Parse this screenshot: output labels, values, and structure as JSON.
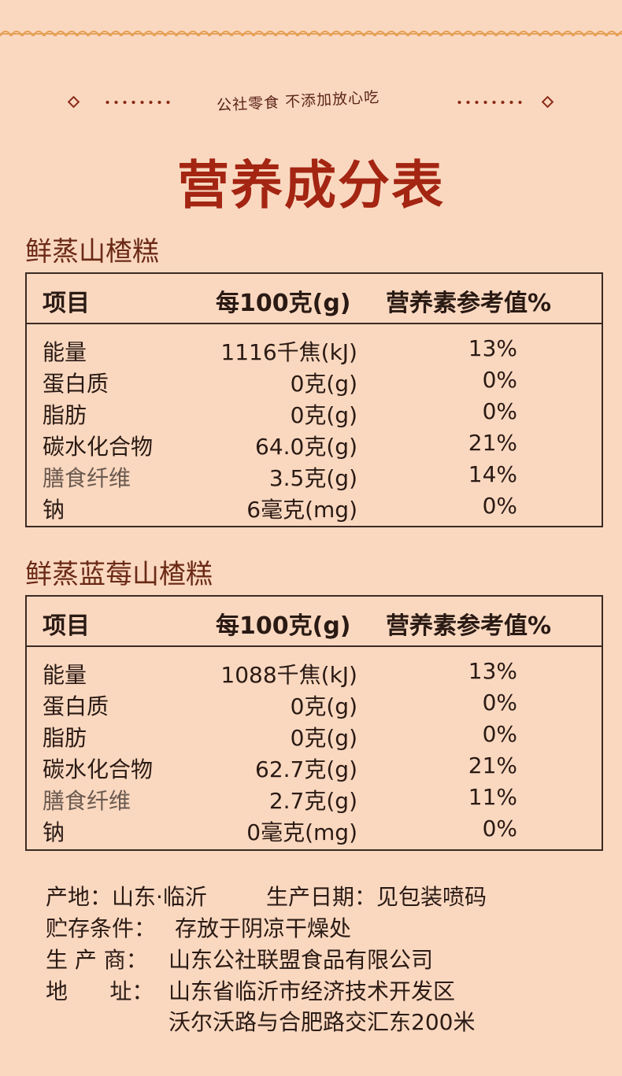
{
  "slogan": "公社零食 不添加放心吃",
  "title": "营养成分表",
  "tables": [
    {
      "name": "鲜蒸山楂糕",
      "headers": [
        "项目",
        "每100克(g)",
        "营养素参考值%"
      ],
      "rows": [
        {
          "item": "能量",
          "amount": "1116千焦(kJ)",
          "nrv": "13%"
        },
        {
          "item": "蛋白质",
          "amount": "0克(g)",
          "nrv": "0%"
        },
        {
          "item": "脂肪",
          "amount": "0克(g)",
          "nrv": "0%"
        },
        {
          "item": "碳水化合物",
          "amount": "64.0克(g)",
          "nrv": "21%"
        },
        {
          "item": "膳食纤维",
          "amount": "3.5克(g)",
          "nrv": "14%"
        },
        {
          "item": "钠",
          "amount": "6毫克(mg)",
          "nrv": "0%"
        }
      ]
    },
    {
      "name": "鲜蒸蓝莓山楂糕",
      "headers": [
        "项目",
        "每100克(g)",
        "营养素参考值%"
      ],
      "rows": [
        {
          "item": "能量",
          "amount": "1088千焦(kJ)",
          "nrv": "13%"
        },
        {
          "item": "蛋白质",
          "amount": "0克(g)",
          "nrv": "0%"
        },
        {
          "item": "脂肪",
          "amount": "0克(g)",
          "nrv": "0%"
        },
        {
          "item": "碳水化合物",
          "amount": "62.7克(g)",
          "nrv": "21%"
        },
        {
          "item": "膳食纤维",
          "amount": "2.7克(g)",
          "nrv": "11%"
        },
        {
          "item": "钠",
          "amount": "0毫克(mg)",
          "nrv": "0%"
        }
      ]
    }
  ],
  "info": {
    "origin": "产地：山东·临沂",
    "production_date": "生产日期：见包装喷码",
    "storage_label": "贮存条件：",
    "storage_value": "存放于阴凉干燥处",
    "maker_label": "生 产 商：",
    "maker_value": "山东公社联盟食品有限公司",
    "address_label": "地      址：",
    "address_line1": "山东省临沂市经济技术开发区",
    "address_line2": "沃尔沃路与合肥路交汇东200米"
  },
  "colors": {
    "background": "#fad8c0",
    "title": "#a32512",
    "section": "#6b2a16",
    "border": "#3a2a24"
  }
}
